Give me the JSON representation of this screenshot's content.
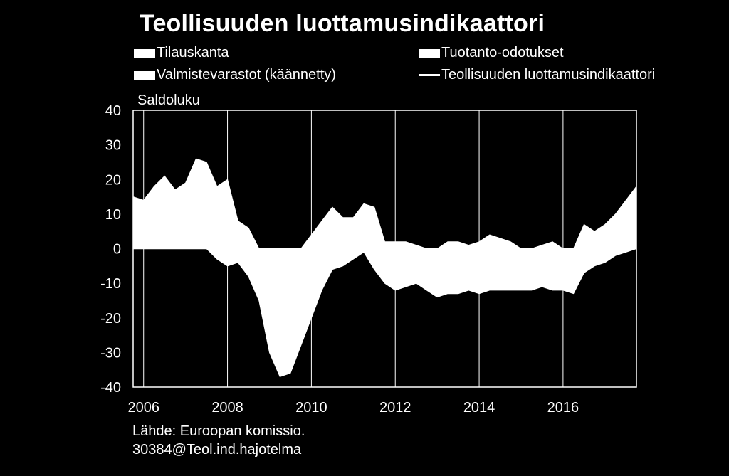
{
  "chart_data": {
    "type": "area",
    "title": "Teollisuuden luottamusindikaattori",
    "ylabel": "Saldoluku",
    "ylim": [
      -40,
      40
    ],
    "yticks": [
      "40",
      "30",
      "20",
      "10",
      "0",
      "-10",
      "-20",
      "-30",
      "-40"
    ],
    "xlim": [
      2005.75,
      2017.75
    ],
    "xticks": [
      {
        "value": 2006,
        "label": "2006"
      },
      {
        "value": 2008,
        "label": "2008"
      },
      {
        "value": 2010,
        "label": "2010"
      },
      {
        "value": 2012,
        "label": "2012"
      },
      {
        "value": 2014,
        "label": "2014"
      },
      {
        "value": 2016,
        "label": "2016"
      }
    ],
    "grid": true,
    "legend": [
      {
        "name": "Tilauskanta",
        "kind": "area"
      },
      {
        "name": "Tuotanto-odotukset",
        "kind": "area"
      },
      {
        "name": "Valmistevarastot (käännetty)",
        "kind": "area"
      },
      {
        "name": "Teollisuuden luottamusindikaattori",
        "kind": "line"
      }
    ],
    "x": [
      2005.75,
      2006.0,
      2006.25,
      2006.5,
      2006.75,
      2007.0,
      2007.25,
      2007.5,
      2007.75,
      2008.0,
      2008.25,
      2008.5,
      2008.75,
      2009.0,
      2009.25,
      2009.5,
      2009.75,
      2010.0,
      2010.25,
      2010.5,
      2010.75,
      2011.0,
      2011.25,
      2011.5,
      2011.75,
      2012.0,
      2012.25,
      2012.5,
      2012.75,
      2013.0,
      2013.25,
      2013.5,
      2013.75,
      2014.0,
      2014.25,
      2014.5,
      2014.75,
      2015.0,
      2015.25,
      2015.5,
      2015.75,
      2016.0,
      2016.25,
      2016.5,
      2016.75,
      2017.0,
      2017.25,
      2017.5,
      2017.75
    ],
    "series": [
      {
        "name": "Teollisuuden luottamusindikaattori",
        "stack_top": [
          15,
          14,
          18,
          21,
          17,
          19,
          26,
          25,
          18,
          20,
          8,
          6,
          0,
          0,
          0,
          0,
          0,
          4,
          8,
          12,
          9,
          9,
          13,
          12,
          2,
          2,
          2,
          1,
          0,
          0,
          2,
          2,
          1,
          2,
          4,
          3,
          2,
          0,
          0,
          1,
          2,
          0,
          0,
          7,
          5,
          7,
          10,
          14,
          18
        ],
        "stack_bottom": [
          0,
          0,
          0,
          0,
          0,
          0,
          0,
          0,
          -3,
          -5,
          -4,
          -8,
          -15,
          -30,
          -37,
          -36,
          -28,
          -20,
          -12,
          -6,
          -5,
          -3,
          -1,
          -6,
          -10,
          -12,
          -11,
          -10,
          -12,
          -14,
          -13,
          -13,
          -12,
          -13,
          -12,
          -12,
          -12,
          -12,
          -12,
          -11,
          -12,
          -12,
          -13,
          -7,
          -5,
          -4,
          -2,
          -1,
          0
        ]
      }
    ]
  },
  "source": {
    "line1": "Lähde: Euroopan komissio.",
    "line2": "30384@Teol.ind.hajotelma"
  },
  "colors": {
    "background": "#000000",
    "fill": "#ffffff"
  }
}
